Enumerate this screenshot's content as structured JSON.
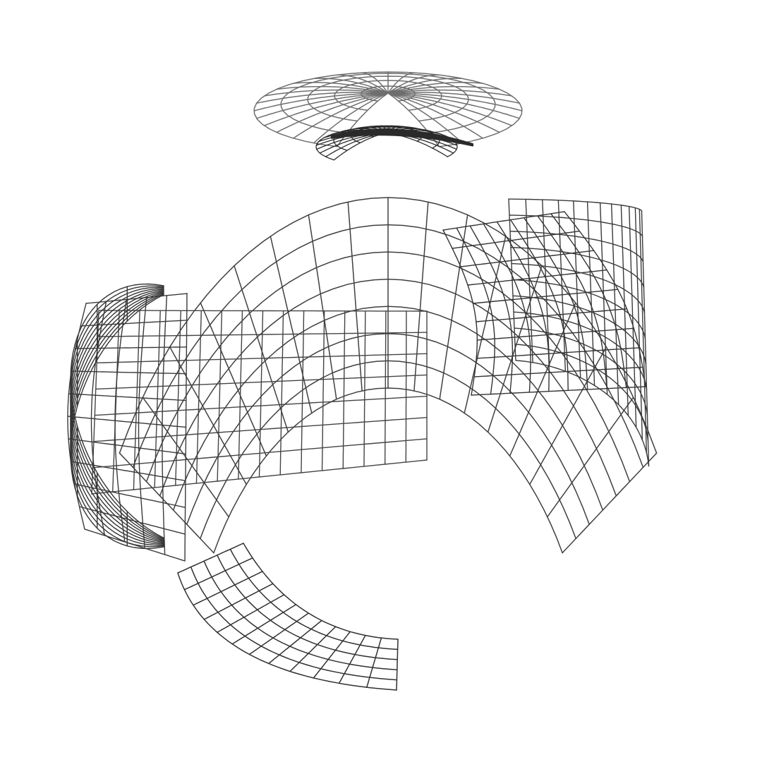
{
  "scene": {
    "background": "#ffffff",
    "patches": [
      {
        "name": "top-cap-upper",
        "color": "#6e6e6e"
      },
      {
        "name": "top-cap-lower",
        "color": "#2a2a2a"
      },
      {
        "name": "top-sliver",
        "color": "#2b2b2b"
      },
      {
        "name": "upper-band",
        "color": "#404040"
      },
      {
        "name": "left-cylinder",
        "color": "#353535"
      },
      {
        "name": "left-sheet",
        "color": "#3a3a3a"
      },
      {
        "name": "middle-sheet",
        "color": "#444444"
      },
      {
        "name": "right-sheet",
        "color": "#333333"
      },
      {
        "name": "right-cylinder",
        "color": "#3a3a3a"
      },
      {
        "name": "bottom-fragment",
        "color": "#303030"
      }
    ]
  }
}
